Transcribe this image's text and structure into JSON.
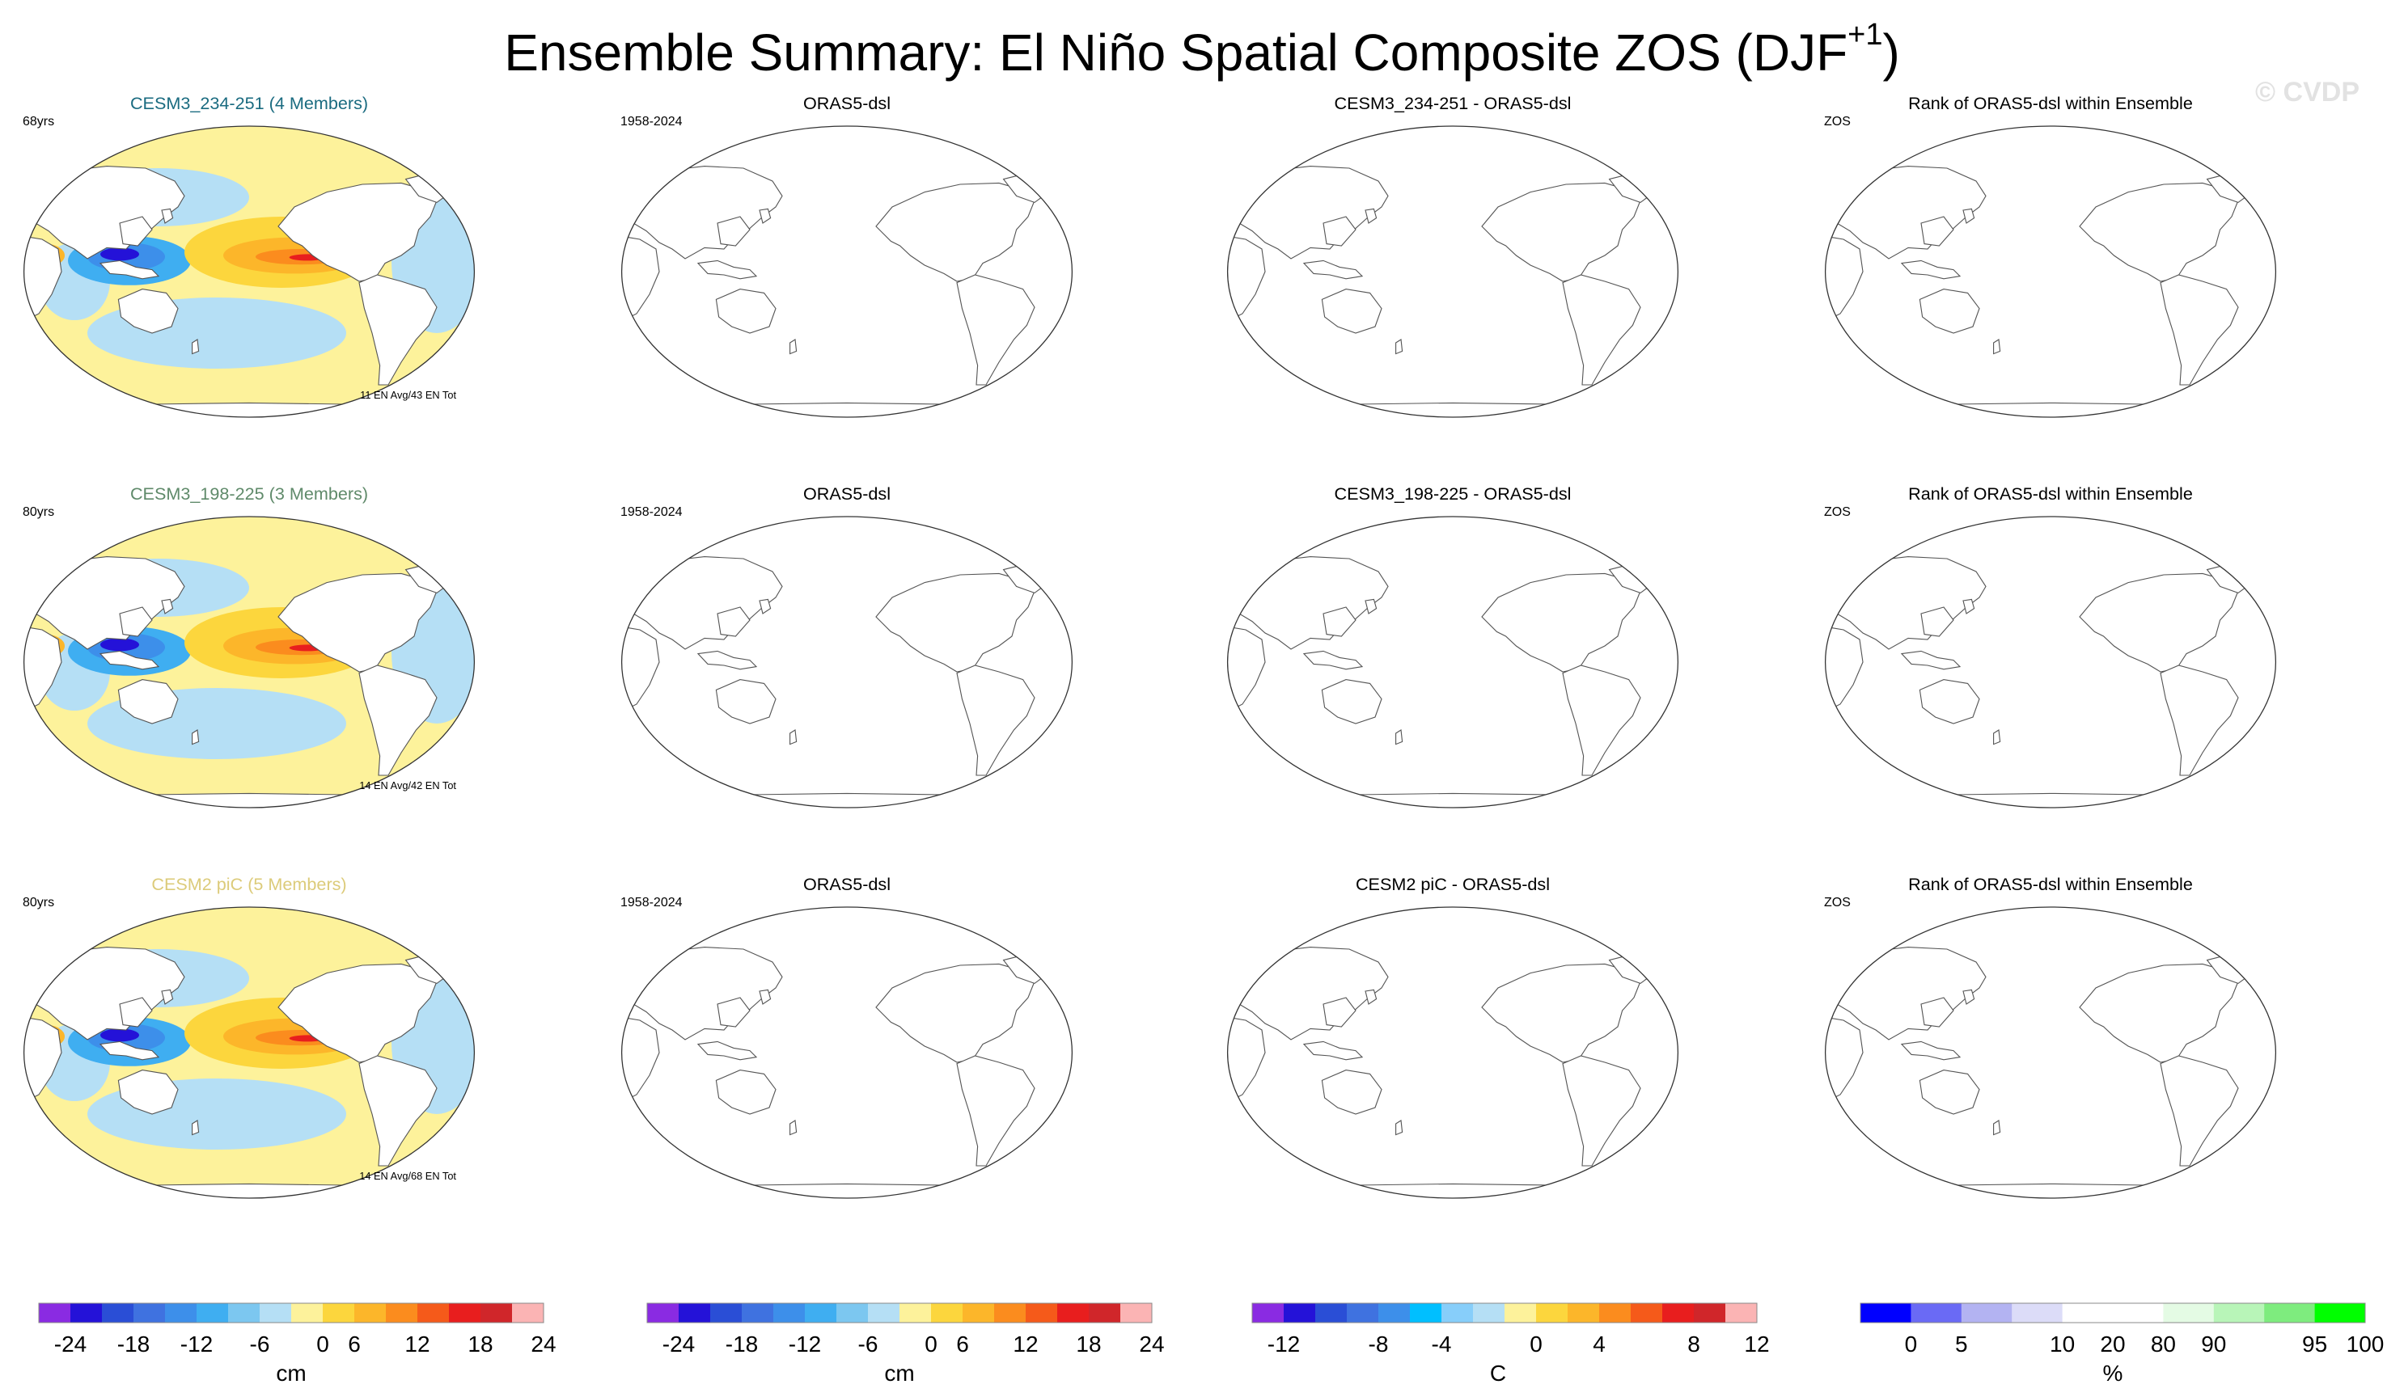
{
  "header": {
    "title_main": "Ensemble Summary: El Niño Spatial Composite ZOS (DJF",
    "title_sup": "+1",
    "title_close": ")",
    "watermark": "© CVDP"
  },
  "chart_data": [
    {
      "type": "heatmap",
      "title": "CESM3_234-251 (4 Members)",
      "title_color": "#1a6b80",
      "top_left": "68yrs",
      "bottom_right": "11 EN Avg/43 EN Tot",
      "field": "model"
    },
    {
      "type": "heatmap",
      "title": "ORAS5-dsl",
      "top_left": "1958-2024",
      "field": "empty"
    },
    {
      "type": "heatmap",
      "title": "CESM3_234-251 - ORAS5-dsl",
      "field": "empty"
    },
    {
      "type": "heatmap",
      "title": "Rank of ORAS5-dsl within Ensemble",
      "top_left": "ZOS",
      "field": "empty"
    },
    {
      "type": "heatmap",
      "title": "CESM3_198-225 (3 Members)",
      "title_color": "#5f8a6a",
      "top_left": "80yrs",
      "bottom_right": "14 EN Avg/42 EN Tot",
      "field": "model"
    },
    {
      "type": "heatmap",
      "title": "ORAS5-dsl",
      "top_left": "1958-2024",
      "field": "empty"
    },
    {
      "type": "heatmap",
      "title": "CESM3_198-225 - ORAS5-dsl",
      "field": "empty"
    },
    {
      "type": "heatmap",
      "title": "Rank of ORAS5-dsl within Ensemble",
      "top_left": "ZOS",
      "field": "empty"
    },
    {
      "type": "heatmap",
      "title": "CESM2 piC (5 Members)",
      "title_color": "#dccb7a",
      "top_left": "80yrs",
      "bottom_right": "14 EN Avg/68 EN Tot",
      "field": "model"
    },
    {
      "type": "heatmap",
      "title": "ORAS5-dsl",
      "top_left": "1958-2024",
      "field": "empty"
    },
    {
      "type": "heatmap",
      "title": "CESM2 piC - ORAS5-dsl",
      "field": "empty"
    },
    {
      "type": "heatmap",
      "title": "Rank of ORAS5-dsl within Ensemble",
      "top_left": "ZOS",
      "field": "empty"
    }
  ],
  "colorbars": [
    {
      "unit": "cm",
      "colors": [
        "#8a2be2",
        "#2412d8",
        "#2a4ed6",
        "#3f72e0",
        "#3d8fea",
        "#3faef1",
        "#7cc7f0",
        "#b5dff5",
        "#fdf29b",
        "#fcd63d",
        "#fcb62a",
        "#fb8c1e",
        "#f55a1a",
        "#e81e1e",
        "#d0262a",
        "#fbb4b4"
      ],
      "labels": [
        "-24",
        "-18",
        "-12",
        "-6",
        "0",
        "6",
        "12",
        "18",
        "24"
      ]
    },
    {
      "unit": "cm",
      "colors": [
        "#8a2be2",
        "#2412d8",
        "#2a4ed6",
        "#3f72e0",
        "#3d8fea",
        "#3faef1",
        "#7cc7f0",
        "#b5dff5",
        "#fdf29b",
        "#fcd63d",
        "#fcb62a",
        "#fb8c1e",
        "#f55a1a",
        "#e81e1e",
        "#d0262a",
        "#fbb4b4"
      ],
      "labels": [
        "-24",
        "-18",
        "-12",
        "-6",
        "0",
        "6",
        "12",
        "18",
        "24"
      ]
    },
    {
      "unit": "C",
      "colors": [
        "#8a2be2",
        "#2412d8",
        "#2a4ed6",
        "#3f72e0",
        "#3d8fea",
        "#00bfff",
        "#87cefa",
        "#b5dff5",
        "#fdf29b",
        "#fcd63d",
        "#fcb62a",
        "#fb8c1e",
        "#f55a1a",
        "#e81e1e",
        "#d0262a",
        "#fbb4b4"
      ],
      "labels": [
        "-12",
        "-8",
        "-4",
        "0",
        "4",
        "8",
        "12"
      ]
    },
    {
      "unit": "%",
      "colors": [
        "#0000ff",
        "#6a6af5",
        "#b3b3f2",
        "#dcdcf8",
        "#ffffff",
        "#ffffff",
        "#e4fbe4",
        "#b8f5b8",
        "#7eec7e",
        "#00ff00"
      ],
      "labels": [
        "0",
        "5",
        "10",
        "20",
        "80",
        "90",
        "95",
        "100"
      ]
    }
  ]
}
